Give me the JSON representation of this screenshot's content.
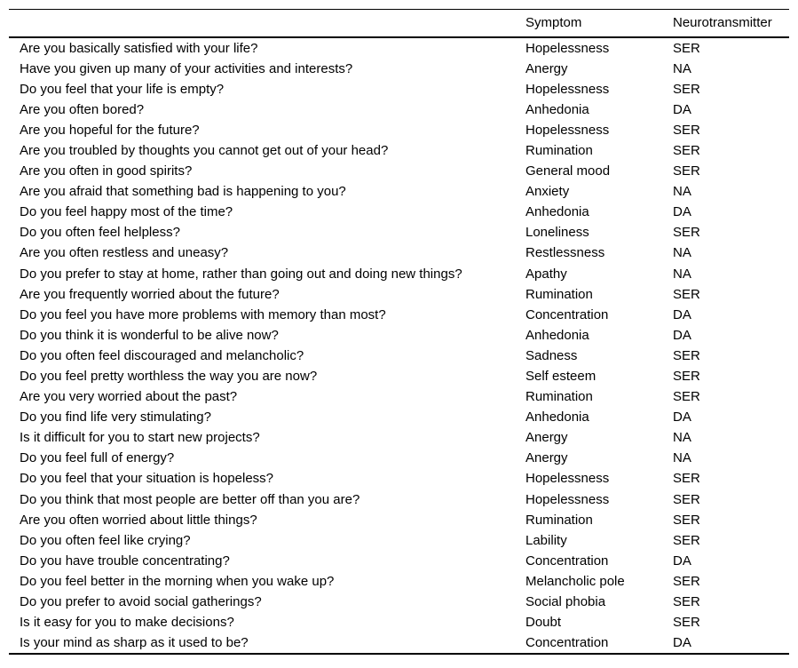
{
  "table": {
    "headers": {
      "question": "",
      "symptom": "Symptom",
      "neurotransmitter": "Neurotransmitter"
    },
    "rows": [
      {
        "question": "Are you basically satisfied with your life?",
        "symptom": "Hopelessness",
        "neurotransmitter": "SER"
      },
      {
        "question": "Have you given up many of your activities and interests?",
        "symptom": "Anergy",
        "neurotransmitter": "NA"
      },
      {
        "question": "Do you feel that your life is empty?",
        "symptom": "Hopelessness",
        "neurotransmitter": "SER"
      },
      {
        "question": "Are you often bored?",
        "symptom": "Anhedonia",
        "neurotransmitter": "DA"
      },
      {
        "question": "Are you hopeful for the future?",
        "symptom": "Hopelessness",
        "neurotransmitter": "SER"
      },
      {
        "question": "Are you troubled by thoughts you cannot get out of your head?",
        "symptom": "Rumination",
        "neurotransmitter": "SER"
      },
      {
        "question": "Are you often in good spirits?",
        "symptom": "General mood",
        "neurotransmitter": "SER"
      },
      {
        "question": "Are you afraid that something bad is happening to you?",
        "symptom": "Anxiety",
        "neurotransmitter": "NA"
      },
      {
        "question": "Do you feel happy most of the time?",
        "symptom": "Anhedonia",
        "neurotransmitter": "DA"
      },
      {
        "question": "Do you often feel helpless?",
        "symptom": "Loneliness",
        "neurotransmitter": "SER"
      },
      {
        "question": "Are you often restless and uneasy?",
        "symptom": "Restlessness",
        "neurotransmitter": "NA"
      },
      {
        "question": "Do you prefer to stay at home, rather than going out and doing new things?",
        "symptom": "Apathy",
        "neurotransmitter": "NA"
      },
      {
        "question": "Are you frequently worried about the future?",
        "symptom": "Rumination",
        "neurotransmitter": "SER"
      },
      {
        "question": "Do you feel you have more problems with memory than most?",
        "symptom": "Concentration",
        "neurotransmitter": "DA"
      },
      {
        "question": "Do you think it is wonderful to be alive now?",
        "symptom": "Anhedonia",
        "neurotransmitter": "DA"
      },
      {
        "question": "Do you often feel discouraged and melancholic?",
        "symptom": "Sadness",
        "neurotransmitter": "SER"
      },
      {
        "question": "Do you feel pretty worthless the way you are now?",
        "symptom": "Self esteem",
        "neurotransmitter": "SER"
      },
      {
        "question": "Are you very worried about the past?",
        "symptom": "Rumination",
        "neurotransmitter": "SER"
      },
      {
        "question": "Do you find life very stimulating?",
        "symptom": "Anhedonia",
        "neurotransmitter": "DA"
      },
      {
        "question": "Is it difficult for you to start new projects?",
        "symptom": "Anergy",
        "neurotransmitter": "NA"
      },
      {
        "question": "Do you feel full of energy?",
        "symptom": "Anergy",
        "neurotransmitter": "NA"
      },
      {
        "question": "Do you feel that your situation is hopeless?",
        "symptom": "Hopelessness",
        "neurotransmitter": "SER"
      },
      {
        "question": "Do you think that most people are better off than you are?",
        "symptom": "Hopelessness",
        "neurotransmitter": "SER"
      },
      {
        "question": "Are you often worried about little things?",
        "symptom": "Rumination",
        "neurotransmitter": "SER"
      },
      {
        "question": "Do you often feel like crying?",
        "symptom": "Lability",
        "neurotransmitter": "SER"
      },
      {
        "question": "Do you have trouble concentrating?",
        "symptom": "Concentration",
        "neurotransmitter": "DA"
      },
      {
        "question": "Do you feel better in the morning when you wake up?",
        "symptom": "Melancholic pole",
        "neurotransmitter": "SER"
      },
      {
        "question": "Do you prefer to avoid social gatherings?",
        "symptom": "Social phobia",
        "neurotransmitter": "SER"
      },
      {
        "question": "Is it easy for you to make decisions?",
        "symptom": "Doubt",
        "neurotransmitter": "SER"
      },
      {
        "question": "Is your mind as sharp as it used to be?",
        "symptom": "Concentration",
        "neurotransmitter": "DA"
      }
    ]
  }
}
